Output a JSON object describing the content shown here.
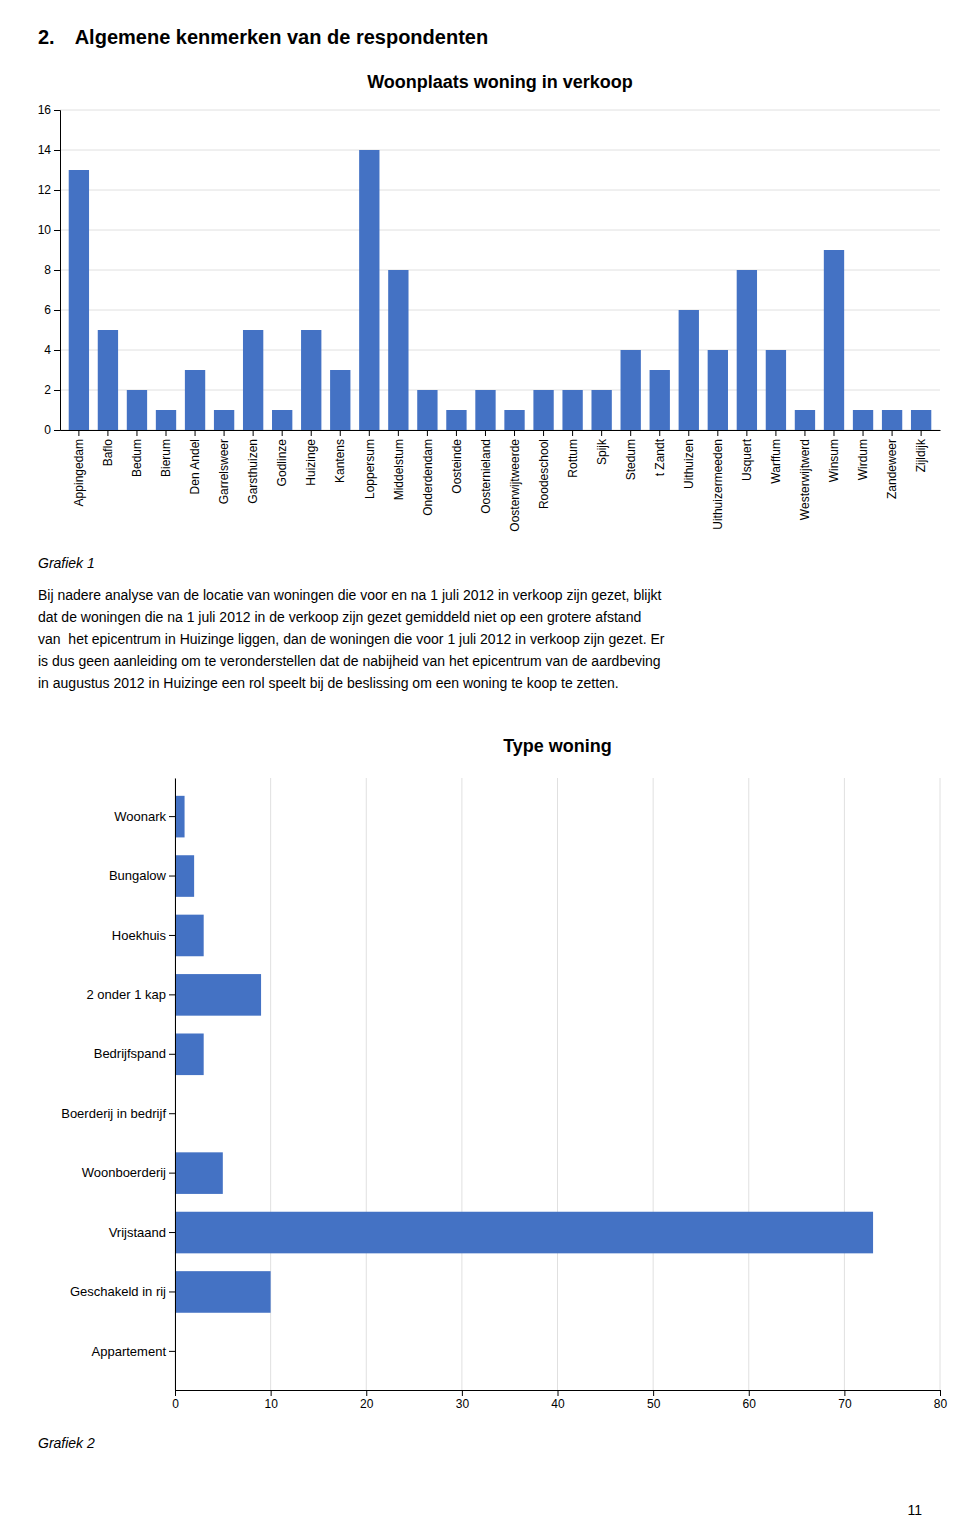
{
  "page_title": "2. Algemene kenmerken van de respondenten",
  "paragraph": [
    "Bij nadere analyse van de locatie van woningen die voor en na 1 juli 2012 in verkoop zijn gezet, blijkt",
    "dat de woningen die na 1 juli 2012 in de verkoop zijn gezet gemiddeld niet op een grotere afstand",
    "van  het epicentrum in Huizinge liggen, dan de woningen die voor 1 juli 2012 in verkoop zijn gezet. Er",
    "is dus geen aanleiding om te veronderstellen dat de nabijheid van het epicentrum van de aardbeving",
    "in augustus 2012 in Huizinge een rol speelt bij de beslissing om een woning te koop te zetten."
  ],
  "page_number": "11",
  "chart_data": [
    {
      "type": "bar",
      "title": "Woonplaats woning in verkoop",
      "categories": [
        "Appingedam",
        "Baflo",
        "Bedum",
        "Bierum",
        "Den Andel",
        "Garrelsweer",
        "Garsthuizen",
        "Godlinze",
        "Huizinge",
        "Kantens",
        "Loppersum",
        "Middelstum",
        "Onderdendam",
        "Oosteinde",
        "Oosternieland",
        "Oosterwijtweerde",
        "Roodeschool",
        "Rottum",
        "Spijk",
        "Stedum",
        "t Zandt",
        "Uithuizen",
        "Uithuizermeeden",
        "Usquert",
        "Warffum",
        "Westerwijtwerd",
        "Winsum",
        "Wirdum",
        "Zandeweer",
        "Zijldijk"
      ],
      "values": [
        13,
        5,
        2,
        1,
        3,
        1,
        5,
        1,
        5,
        3,
        14,
        8,
        2,
        1,
        2,
        1,
        2,
        2,
        2,
        4,
        3,
        6,
        4,
        8,
        4,
        1,
        9,
        1,
        1,
        1
      ],
      "color": "#4472C4",
      "ylim": [
        0,
        16
      ],
      "yticks": [
        0,
        2,
        4,
        6,
        8,
        10,
        12,
        14,
        16
      ],
      "grid": true,
      "annotations": [
        "Grafiek 1"
      ]
    },
    {
      "type": "bar",
      "title": "Type woning",
      "orientation": "horizontal",
      "categories": [
        "Woonark",
        "Bungalow",
        "Hoekhuis",
        "2 onder 1 kap",
        "Bedrijfspand",
        "Boerderij in bedrijf",
        "Woonboerderij",
        "Vrijstaand",
        "Geschakeld in rij",
        "Appartement"
      ],
      "values": [
        1,
        2,
        3,
        9,
        3,
        0,
        5,
        73,
        10,
        0
      ],
      "color": "#4472C4",
      "xlim": [
        0,
        80
      ],
      "xticks": [
        0,
        10,
        20,
        30,
        40,
        50,
        60,
        70,
        80
      ],
      "grid": true,
      "annotations": [
        "Grafiek 2"
      ]
    }
  ]
}
